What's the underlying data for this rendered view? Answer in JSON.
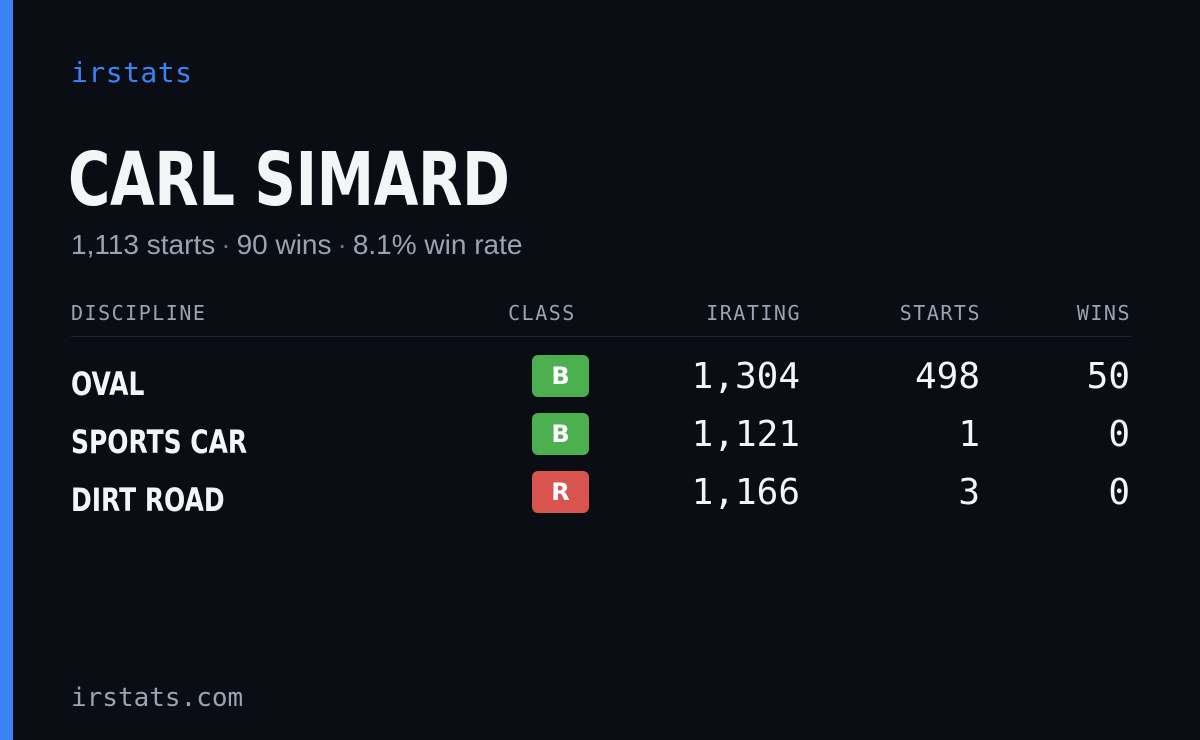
{
  "brand": "irstats",
  "driver": {
    "name": "CARL SIMARD",
    "summary": {
      "starts": "1,113 starts",
      "wins": "90 wins",
      "win_rate": "8.1% win rate",
      "separator": "·"
    }
  },
  "table": {
    "headers": {
      "discipline": "DISCIPLINE",
      "class": "CLASS",
      "irating": "IRATING",
      "starts": "STARTS",
      "wins": "WINS"
    },
    "rows": [
      {
        "discipline": "OVAL",
        "class": "B",
        "class_color": "#4caf50",
        "irating": "1,304",
        "starts": "498",
        "wins": "50"
      },
      {
        "discipline": "SPORTS CAR",
        "class": "B",
        "class_color": "#4caf50",
        "irating": "1,121",
        "starts": "1",
        "wins": "0"
      },
      {
        "discipline": "DIRT ROAD",
        "class": "R",
        "class_color": "#d9534f",
        "irating": "1,166",
        "starts": "3",
        "wins": "0"
      }
    ]
  },
  "footer": {
    "site": "irstats.com"
  },
  "colors": {
    "background": "#0a0d14",
    "accent": "#3b82f6",
    "muted_text": "#9aa3b2",
    "class_b": "#4caf50",
    "class_r": "#d9534f"
  }
}
